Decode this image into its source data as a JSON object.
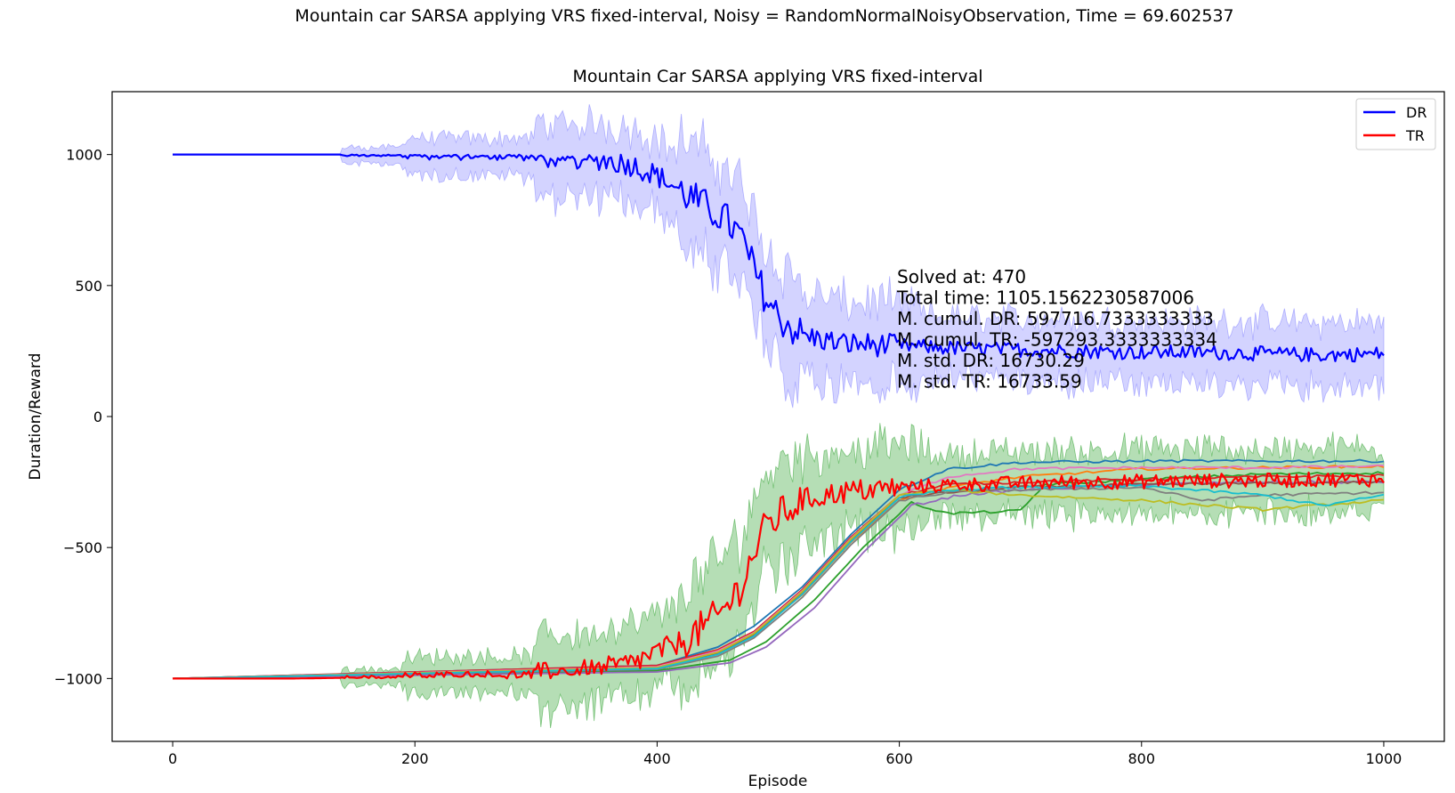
{
  "figure": {
    "suptitle": "Mountain car SARSA applying VRS fixed-interval, Noisy = RandomNormalNoisyObservation, Time = 69.602537"
  },
  "chart_data": {
    "type": "line",
    "title": "Mountain Car SARSA applying VRS fixed-interval",
    "xlabel": "Episode",
    "ylabel": "Duration/Reward",
    "xlim": [
      -50,
      1050
    ],
    "ylim": [
      -1240,
      1240
    ],
    "xticks": [
      0,
      200,
      400,
      600,
      800,
      1000
    ],
    "yticks": [
      -1000,
      -500,
      0,
      500,
      1000
    ],
    "xtick_labels": [
      "0",
      "200",
      "400",
      "600",
      "800",
      "1000"
    ],
    "ytick_labels": [
      "−1000",
      "−500",
      "0",
      "500",
      "1000"
    ],
    "grid": false,
    "legend": {
      "placement": "top-right",
      "entries": [
        "DR",
        "TR"
      ]
    },
    "colors": {
      "DR": "#0000ff",
      "DR_band": "#8080ff",
      "TR": "#ff0000",
      "TR_band": "#2ca02c"
    },
    "annotation": [
      "Solved at: 470",
      "Total time: 1105.1562230587006",
      "M. cumul. DR: 597716.7333333333",
      "M. cumul. TR: -597293.3333333334",
      "M. std. DR: 16730.29",
      "M. std. TR: 16733.59"
    ],
    "series": [
      {
        "name": "DR",
        "x": [
          0,
          100,
          180,
          250,
          300,
          350,
          380,
          400,
          420,
          440,
          455,
          470,
          480,
          490,
          500,
          520,
          550,
          600,
          650,
          700,
          750,
          800,
          850,
          900,
          950,
          1000
        ],
        "values": [
          1000,
          1000,
          1000,
          998,
          995,
          985,
          960,
          920,
          860,
          800,
          760,
          680,
          560,
          450,
          380,
          310,
          280,
          270,
          260,
          255,
          250,
          245,
          245,
          240,
          235,
          240
        ]
      },
      {
        "name": "TR",
        "x": [
          0,
          100,
          180,
          250,
          300,
          350,
          380,
          400,
          420,
          440,
          455,
          470,
          480,
          490,
          500,
          520,
          550,
          600,
          650,
          700,
          750,
          800,
          850,
          900,
          950,
          1000
        ],
        "values": [
          -1000,
          -1000,
          -995,
          -990,
          -985,
          -970,
          -940,
          -900,
          -860,
          -800,
          -740,
          -640,
          -520,
          -420,
          -380,
          -320,
          -290,
          -270,
          -260,
          -255,
          -250,
          -248,
          -245,
          -245,
          -240,
          -240
        ]
      }
    ],
    "runs": [
      {
        "color": "#1f77b4",
        "x": [
          0,
          400,
          450,
          480,
          520,
          560,
          600,
          640,
          700,
          800,
          900,
          1000
        ],
        "values": [
          -1000,
          -950,
          -880,
          -800,
          -650,
          -450,
          -280,
          -200,
          -175,
          -170,
          -170,
          -170
        ]
      },
      {
        "color": "#ff7f0e",
        "x": [
          0,
          400,
          450,
          480,
          520,
          560,
          600,
          640,
          700,
          800,
          900,
          1000
        ],
        "values": [
          -1000,
          -960,
          -900,
          -830,
          -680,
          -480,
          -320,
          -270,
          -230,
          -200,
          -195,
          -190
        ]
      },
      {
        "color": "#2ca02c",
        "x": [
          0,
          400,
          460,
          490,
          530,
          570,
          610,
          640,
          700,
          720,
          800,
          900,
          1000
        ],
        "values": [
          -1000,
          -970,
          -930,
          -860,
          -700,
          -500,
          -330,
          -370,
          -360,
          -260,
          -240,
          -220,
          -215
        ]
      },
      {
        "color": "#d62728",
        "x": [
          0,
          400,
          450,
          480,
          520,
          560,
          600,
          640,
          700,
          800,
          900,
          1000
        ],
        "values": [
          -1000,
          -950,
          -890,
          -820,
          -660,
          -460,
          -300,
          -260,
          -250,
          -240,
          -230,
          -225
        ]
      },
      {
        "color": "#9467bd",
        "x": [
          0,
          400,
          460,
          490,
          530,
          570,
          610,
          650,
          700,
          800,
          900,
          1000
        ],
        "values": [
          -1000,
          -975,
          -940,
          -880,
          -730,
          -520,
          -340,
          -300,
          -280,
          -260,
          -250,
          -250
        ]
      },
      {
        "color": "#8c564b",
        "x": [
          0,
          400,
          450,
          480,
          520,
          560,
          600,
          640,
          700,
          800,
          900,
          1000
        ],
        "values": [
          -1000,
          -960,
          -905,
          -835,
          -670,
          -470,
          -310,
          -290,
          -270,
          -260,
          -255,
          -250
        ]
      },
      {
        "color": "#e377c2",
        "x": [
          0,
          400,
          450,
          480,
          520,
          560,
          600,
          640,
          700,
          800,
          900,
          1000
        ],
        "values": [
          -1000,
          -955,
          -895,
          -825,
          -665,
          -465,
          -300,
          -230,
          -200,
          -195,
          -195,
          -190
        ]
      },
      {
        "color": "#7f7f7f",
        "x": [
          0,
          400,
          450,
          480,
          520,
          560,
          600,
          640,
          700,
          800,
          850,
          900,
          1000
        ],
        "values": [
          -1000,
          -965,
          -915,
          -845,
          -690,
          -490,
          -320,
          -290,
          -280,
          -270,
          -320,
          -300,
          -290
        ]
      },
      {
        "color": "#bcbd22",
        "x": [
          0,
          400,
          450,
          480,
          520,
          560,
          600,
          640,
          700,
          800,
          900,
          1000
        ],
        "values": [
          -1000,
          -958,
          -900,
          -828,
          -668,
          -468,
          -300,
          -280,
          -300,
          -320,
          -355,
          -320
        ]
      },
      {
        "color": "#17becf",
        "x": [
          0,
          400,
          450,
          480,
          520,
          560,
          600,
          640,
          700,
          800,
          900,
          950,
          1000
        ],
        "values": [
          -1000,
          -962,
          -908,
          -838,
          -678,
          -478,
          -310,
          -280,
          -270,
          -265,
          -300,
          -340,
          -300
        ]
      }
    ]
  }
}
